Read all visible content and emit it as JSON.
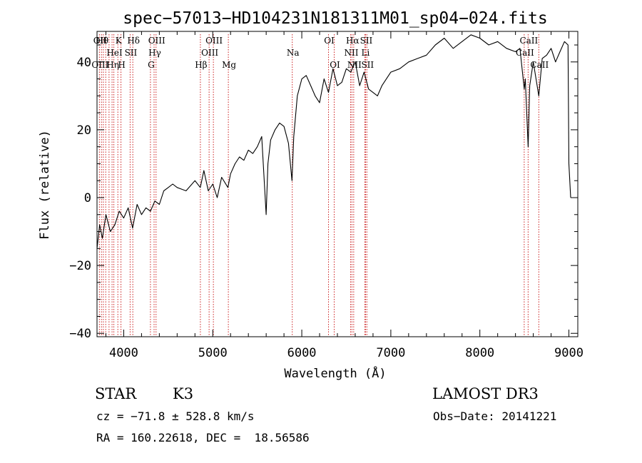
{
  "chart_data": {
    "type": "line",
    "title": "spec−57013−HD104231N181311M01_sp04−024.fits",
    "xlabel": "Wavelength (Å)",
    "ylabel": "Flux (relative)",
    "xlim": [
      3700,
      9100
    ],
    "ylim": [
      -41,
      49
    ],
    "xticks": [
      4000,
      5000,
      6000,
      7000,
      8000,
      9000
    ],
    "xtick_labels": [
      "4000",
      "5000",
      "6000",
      "7000",
      "8000",
      "9000"
    ],
    "yticks": [
      -40,
      -20,
      0,
      20,
      40
    ],
    "ytick_labels": [
      "−40",
      "−20",
      "0",
      "20",
      "40"
    ],
    "grid": false,
    "series": [
      {
        "x": [
          3700,
          3730,
          3760,
          3800,
          3850,
          3900,
          3950,
          4000,
          4050,
          4100,
          4150,
          4200,
          4250,
          4300,
          4350,
          4400,
          4450,
          4500,
          4550,
          4600,
          4700,
          4800,
          4860,
          4900,
          4950,
          5000,
          5050,
          5100,
          5170,
          5200,
          5250,
          5300,
          5350,
          5400,
          5450,
          5500,
          5550,
          5600,
          5620,
          5650,
          5700,
          5750,
          5800,
          5850,
          5890,
          5910,
          5950,
          6000,
          6050,
          6100,
          6150,
          6200,
          6250,
          6300,
          6350,
          6400,
          6450,
          6500,
          6550,
          6600,
          6650,
          6700,
          6750,
          6800,
          6850,
          6900,
          7000,
          7100,
          7200,
          7300,
          7400,
          7500,
          7600,
          7700,
          7800,
          7900,
          8000,
          8100,
          8200,
          8300,
          8400,
          8450,
          8498,
          8510,
          8542,
          8560,
          8600,
          8662,
          8700,
          8750,
          8800,
          8850,
          8900,
          8950,
          8990,
          9000,
          9020
        ],
        "y": [
          -15,
          -8,
          -12,
          -5,
          -10,
          -8,
          -4,
          -6,
          -3,
          -9,
          -2,
          -5,
          -3,
          -4,
          -1,
          -2,
          2,
          3,
          4,
          3,
          2,
          5,
          3,
          8,
          2,
          4,
          0,
          6,
          3,
          7,
          10,
          12,
          11,
          14,
          13,
          15,
          18,
          -5,
          10,
          17,
          20,
          22,
          21,
          16,
          5,
          18,
          30,
          35,
          36,
          33,
          30,
          28,
          35,
          31,
          38,
          33,
          34,
          38,
          37,
          40,
          33,
          37,
          32,
          31,
          30,
          33,
          37,
          38,
          40,
          41,
          42,
          45,
          47,
          44,
          46,
          48,
          47,
          45,
          46,
          44,
          43,
          44,
          32,
          35,
          15,
          33,
          40,
          30,
          41,
          42,
          44,
          40,
          43,
          46,
          45,
          10,
          0
        ]
      }
    ],
    "lines": [
      {
        "x": 3727,
        "top": "OII",
        "mid": "",
        "bot": "OIII"
      },
      {
        "x": 3750,
        "top": "Hθ",
        "mid": "",
        "bot": ""
      },
      {
        "x": 3771,
        "top": "",
        "mid": "",
        "bot": ""
      },
      {
        "x": 3798,
        "top": "",
        "mid": "",
        "bot": ""
      },
      {
        "x": 3835,
        "top": "",
        "mid": "",
        "bot": ""
      },
      {
        "x": 3869,
        "top": "",
        "mid": "",
        "bot": "Hη"
      },
      {
        "x": 3889,
        "top": "",
        "mid": "HeI",
        "bot": ""
      },
      {
        "x": 3934,
        "top": "K",
        "mid": "",
        "bot": ""
      },
      {
        "x": 3969,
        "top": "",
        "mid": "",
        "bot": "H"
      },
      {
        "x": 4072,
        "top": "",
        "mid": "SII",
        "bot": ""
      },
      {
        "x": 4102,
        "top": "Hδ",
        "mid": "",
        "bot": ""
      },
      {
        "x": 4300,
        "top": "",
        "mid": "",
        "bot": "G"
      },
      {
        "x": 4341,
        "top": "",
        "mid": "Hγ",
        "bot": ""
      },
      {
        "x": 4363,
        "top": "OIII",
        "mid": "",
        "bot": ""
      },
      {
        "x": 4861,
        "top": "",
        "mid": "",
        "bot": "Hβ"
      },
      {
        "x": 4959,
        "top": "",
        "mid": "OIII",
        "bot": ""
      },
      {
        "x": 5007,
        "top": "OIII",
        "mid": "",
        "bot": ""
      },
      {
        "x": 5175,
        "top": "",
        "mid": "",
        "bot": "Mg"
      },
      {
        "x": 5893,
        "top": "",
        "mid": "Na",
        "bot": ""
      },
      {
        "x": 6300,
        "top": "OI",
        "mid": "",
        "bot": ""
      },
      {
        "x": 6364,
        "top": "",
        "mid": "",
        "bot": "OI"
      },
      {
        "x": 6548,
        "top": "",
        "mid": "NII",
        "bot": ""
      },
      {
        "x": 6563,
        "top": "Hα",
        "mid": "",
        "bot": ""
      },
      {
        "x": 6583,
        "top": "",
        "mid": "",
        "bot": "NII"
      },
      {
        "x": 6708,
        "top": "",
        "mid": "Li",
        "bot": ""
      },
      {
        "x": 6716,
        "top": "SII",
        "mid": "",
        "bot": ""
      },
      {
        "x": 6731,
        "top": "",
        "mid": "",
        "bot": "SII"
      },
      {
        "x": 8498,
        "top": "",
        "mid": "CaII",
        "bot": ""
      },
      {
        "x": 8542,
        "top": "CaII",
        "mid": "",
        "bot": ""
      },
      {
        "x": 8662,
        "top": "",
        "mid": "",
        "bot": "CaII"
      }
    ]
  },
  "footer": {
    "object_type": "STAR",
    "subclass": "K3",
    "survey": "LAMOST DR3",
    "cz": "cz = −71.8 ± 528.8 km/s",
    "obs_date": "Obs−Date: 20141221",
    "coords": "RA = 160.22618, DEC =  18.56586"
  },
  "colors": {
    "spectrum": "#000000",
    "line_markers": "#cc2222",
    "axes": "#000000",
    "background": "#ffffff"
  }
}
